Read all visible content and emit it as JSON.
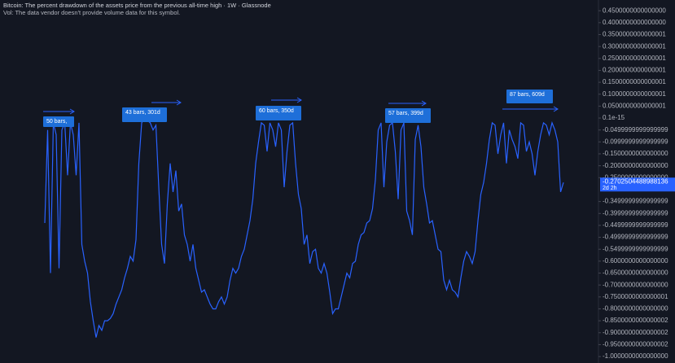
{
  "chart_data": {
    "type": "line",
    "title": "Bitcoin: The percent drawdown of the assets price from the previous all-time high · 1W · Glassnode",
    "subtitle": "Vol: The data vendor doesn't provide volume data for this symbol.",
    "series": [
      {
        "name": "Bitcoin",
        "color": "#2962ff",
        "values": [
          -0.44,
          -0.05,
          -0.65,
          -0.02,
          -0.07,
          -0.63,
          -0.05,
          -0.02,
          -0.24,
          -0.02,
          -0.07,
          -0.24,
          -0.02,
          -0.53,
          -0.6,
          -0.65,
          -0.77,
          -0.85,
          -0.92,
          -0.87,
          -0.89,
          -0.85,
          -0.85,
          -0.84,
          -0.82,
          -0.78,
          -0.75,
          -0.72,
          -0.67,
          -0.63,
          -0.58,
          -0.6,
          -0.51,
          -0.19,
          -0.02,
          0,
          -0.01,
          -0.02,
          -0.05,
          -0.03,
          -0.29,
          -0.53,
          -0.61,
          -0.36,
          -0.19,
          -0.31,
          -0.22,
          -0.39,
          -0.36,
          -0.49,
          -0.53,
          -0.6,
          -0.53,
          -0.63,
          -0.68,
          -0.73,
          -0.72,
          -0.75,
          -0.78,
          -0.8,
          -0.8,
          -0.77,
          -0.75,
          -0.78,
          -0.75,
          -0.68,
          -0.63,
          -0.65,
          -0.63,
          -0.58,
          -0.55,
          -0.49,
          -0.43,
          -0.34,
          -0.19,
          -0.1,
          -0.02,
          -0.03,
          -0.14,
          -0.02,
          -0.05,
          -0.12,
          -0.02,
          -0.05,
          -0.29,
          -0.14,
          -0.03,
          -0.02,
          -0.19,
          -0.32,
          -0.38,
          -0.53,
          -0.49,
          -0.61,
          -0.56,
          -0.55,
          -0.63,
          -0.65,
          -0.61,
          -0.65,
          -0.73,
          -0.82,
          -0.8,
          -0.8,
          -0.75,
          -0.7,
          -0.65,
          -0.67,
          -0.61,
          -0.6,
          -0.53,
          -0.49,
          -0.48,
          -0.44,
          -0.43,
          -0.38,
          -0.26,
          -0.05,
          -0.02,
          -0.29,
          -0.1,
          -0.03,
          -0.02,
          -0.14,
          -0.34,
          -0.05,
          -0.02,
          -0.39,
          -0.43,
          -0.49,
          -0.09,
          -0.03,
          -0.12,
          -0.29,
          -0.36,
          -0.44,
          -0.43,
          -0.49,
          -0.55,
          -0.56,
          -0.68,
          -0.72,
          -0.68,
          -0.72,
          -0.73,
          -0.75,
          -0.67,
          -0.6,
          -0.56,
          -0.58,
          -0.61,
          -0.56,
          -0.43,
          -0.32,
          -0.27,
          -0.19,
          -0.09,
          -0.02,
          -0.03,
          -0.15,
          -0.07,
          -0.02,
          -0.19,
          -0.05,
          -0.09,
          -0.12,
          -0.17,
          -0.02,
          -0.03,
          -0.14,
          -0.1,
          -0.15,
          -0.24,
          -0.14,
          -0.07,
          -0.02,
          -0.03,
          -0.07,
          -0.02,
          -0.05,
          -0.1,
          -0.31,
          -0.27
        ]
      }
    ],
    "ylim": [
      -1.027,
      0.495
    ],
    "yticks": [
      {
        "value": 0.45,
        "label": "0.4500000000000000"
      },
      {
        "value": 0.4,
        "label": "0.4000000000000000"
      },
      {
        "value": 0.35,
        "label": "0.3500000000000001"
      },
      {
        "value": 0.3,
        "label": "0.3000000000000001"
      },
      {
        "value": 0.25,
        "label": "0.2500000000000001"
      },
      {
        "value": 0.2,
        "label": "0.2000000000000001"
      },
      {
        "value": 0.15,
        "label": "0.1500000000000001"
      },
      {
        "value": 0.1,
        "label": "0.1000000000000001"
      },
      {
        "value": 0.05,
        "label": "0.0500000000000001"
      },
      {
        "value": 1e-16,
        "label": "0.1e-15"
      },
      {
        "value": -0.05,
        "label": "-0.0499999999999999"
      },
      {
        "value": -0.1,
        "label": "-0.0999999999999999"
      },
      {
        "value": -0.15,
        "label": "-0.1500000000000000"
      },
      {
        "value": -0.2,
        "label": "-0.2000000000000000"
      },
      {
        "value": -0.25,
        "label": "-0.2500000000000000"
      },
      {
        "value": -0.35,
        "label": "-0.3499999999999999"
      },
      {
        "value": -0.4,
        "label": "-0.3999999999999999"
      },
      {
        "value": -0.45,
        "label": "-0.4499999999999999"
      },
      {
        "value": -0.5,
        "label": "-0.4999999999999999"
      },
      {
        "value": -0.55,
        "label": "-0.5499999999999999"
      },
      {
        "value": -0.6,
        "label": "-0.6000000000000000"
      },
      {
        "value": -0.65,
        "label": "-0.6500000000000000"
      },
      {
        "value": -0.7,
        "label": "-0.7000000000000000"
      },
      {
        "value": -0.75,
        "label": "-0.7500000000000001"
      },
      {
        "value": -0.8,
        "label": "-0.8000000000000000"
      },
      {
        "value": -0.85,
        "label": "-0.8500000000000002"
      },
      {
        "value": -0.9,
        "label": "-0.9000000000000002"
      },
      {
        "value": -0.95,
        "label": "-0.9500000000000002"
      },
      {
        "value": -1,
        "label": "-1.0000000000000000"
      }
    ],
    "last_value": -0.2702504488988136,
    "countdown": "2d 2h",
    "annotations": [
      "50 bars,",
      "43 bars, 301d",
      "60 bars, 350d",
      "57 bars, 399d",
      "87 bars, 609d"
    ]
  }
}
